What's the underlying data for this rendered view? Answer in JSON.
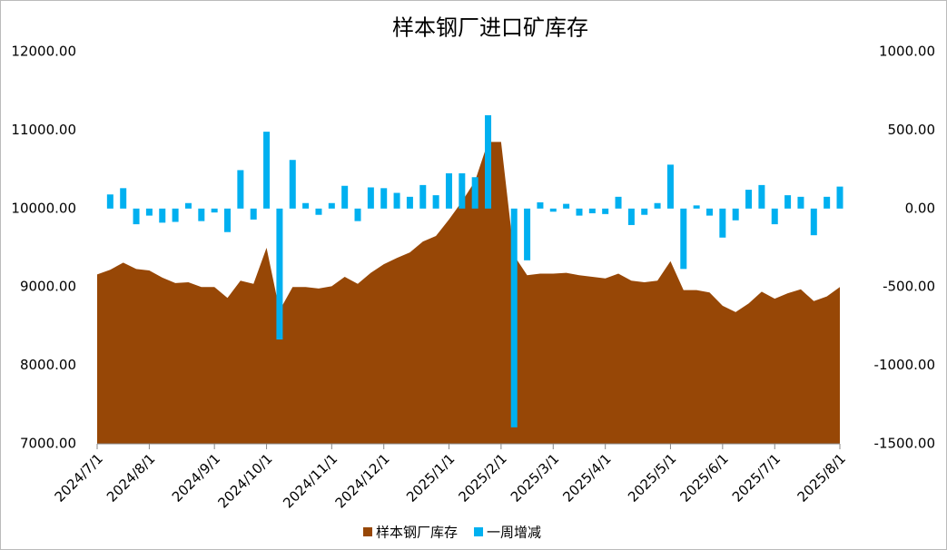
{
  "chart_data": {
    "type": "combo",
    "title": "样本钢厂进口矿库存",
    "categories": [
      "2024/7/1",
      null,
      null,
      null,
      "2024/8/1",
      null,
      null,
      null,
      null,
      "2024/9/1",
      null,
      null,
      null,
      "2024/10/1",
      null,
      null,
      null,
      null,
      "2024/11/1",
      null,
      null,
      null,
      "2024/12/1",
      null,
      null,
      null,
      null,
      "2025/1/1",
      null,
      null,
      null,
      "2025/2/1",
      null,
      null,
      null,
      "2025/3/1",
      null,
      null,
      null,
      "2025/4/1",
      null,
      null,
      null,
      null,
      "2025/5/1",
      null,
      null,
      null,
      "2025/6/1",
      null,
      null,
      null,
      "2025/7/1",
      null,
      null,
      null,
      null,
      "2025/8/1"
    ],
    "series": [
      {
        "name": "样本钢厂库存",
        "type": "area",
        "axis": "y",
        "color": "#974706",
        "values": [
          9160,
          9220,
          9310,
          9230,
          9210,
          9120,
          9050,
          9060,
          9000,
          9000,
          8860,
          9080,
          9040,
          9500,
          8700,
          9000,
          9000,
          8980,
          9010,
          9130,
          9040,
          9180,
          9290,
          9370,
          9440,
          9580,
          9650,
          9860,
          10090,
          10350,
          10850,
          10850,
          9400,
          9150,
          9170,
          9170,
          9180,
          9150,
          9130,
          9110,
          9170,
          9080,
          9060,
          9080,
          9330,
          8960,
          8960,
          8930,
          8760,
          8680,
          8790,
          8940,
          8850,
          8920,
          8970,
          8820,
          8880,
          9000
        ]
      },
      {
        "name": "一周增减",
        "type": "bar",
        "axis": "y2",
        "color": "#00b0f0",
        "values": [
          null,
          90,
          130,
          -100,
          -45,
          -90,
          -85,
          35,
          -80,
          -25,
          -150,
          245,
          -70,
          490,
          -835,
          310,
          35,
          -40,
          35,
          145,
          -80,
          135,
          130,
          100,
          75,
          150,
          85,
          225,
          225,
          200,
          595,
          null,
          -1395,
          -330,
          40,
          -20,
          30,
          -45,
          -30,
          -35,
          75,
          -105,
          -40,
          35,
          280,
          -385,
          20,
          -45,
          -185,
          -75,
          120,
          150,
          -100,
          85,
          75,
          -170,
          75,
          140
        ]
      }
    ],
    "ylim": [
      7000,
      12000
    ],
    "yticks": [
      {
        "value": 7000,
        "label": "7000.00"
      },
      {
        "value": 8000,
        "label": "8000.00"
      },
      {
        "value": 9000,
        "label": "9000.00"
      },
      {
        "value": 10000,
        "label": "10000.00"
      },
      {
        "value": 11000,
        "label": "11000.00"
      },
      {
        "value": 12000,
        "label": "12000.00"
      }
    ],
    "y2lim": [
      -1500,
      1000
    ],
    "y2ticks": [
      {
        "value": -1500,
        "label": "-1500.00"
      },
      {
        "value": -1000,
        "label": "-1000.00"
      },
      {
        "value": -500,
        "label": "-500.00"
      },
      {
        "value": 0,
        "label": "0.00"
      },
      {
        "value": 500,
        "label": "500.00"
      },
      {
        "value": 1000,
        "label": "1000.00"
      }
    ],
    "legend": "bottom"
  }
}
